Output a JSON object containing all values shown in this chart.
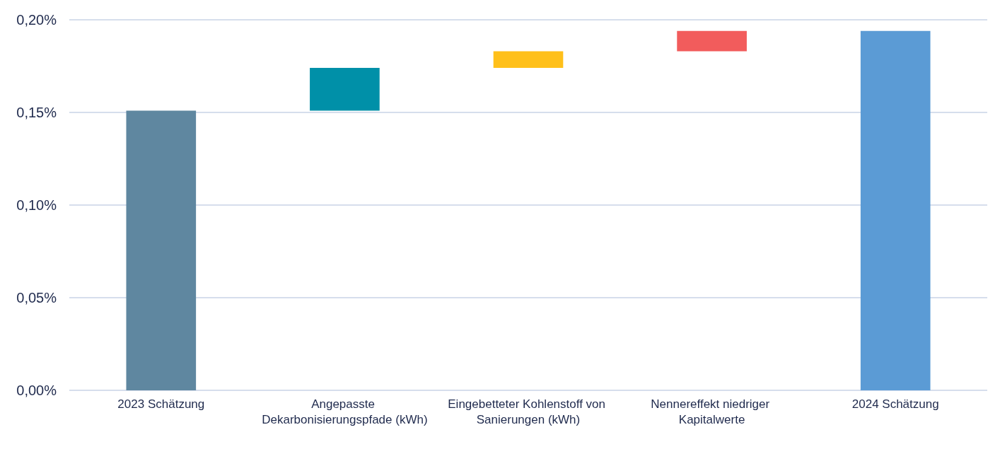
{
  "chart_data": {
    "type": "bar",
    "categories": [
      "2023 Schätzung",
      "Angepasste Dekarbonisierungspfade (kWh)",
      "Eingebetteter Kohlenstoff von Sanierungen (kWh)",
      "Nennereffekt niedriger Kapitalwerte",
      "2024 Schätzung"
    ],
    "values": [
      0.151,
      0.023,
      0.009,
      0.011,
      0.194
    ],
    "base": [
      0,
      0.151,
      0.174,
      0.183,
      0
    ],
    "colors": [
      "#5f87a0",
      "#0090a8",
      "#ffc01a",
      "#f25c5c",
      "#5b9bd5"
    ],
    "ylim": [
      0,
      0.2
    ],
    "yticks": [
      {
        "value": 0,
        "label": "0,00%"
      },
      {
        "value": 0.05,
        "label": "0,05%"
      },
      {
        "value": 0.1,
        "label": "0,10%"
      },
      {
        "value": 0.15,
        "label": "0,15%"
      },
      {
        "value": 0.2,
        "label": "0,20%"
      }
    ],
    "grid": "y"
  }
}
